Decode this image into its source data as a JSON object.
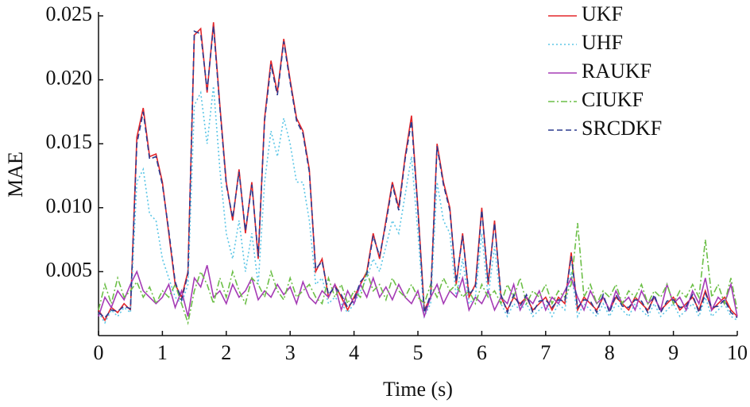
{
  "chart_data": {
    "type": "line",
    "xlabel": "Time (s)",
    "ylabel": "MAE",
    "xlim": [
      0,
      10
    ],
    "xticks": [
      0,
      1,
      2,
      3,
      4,
      5,
      6,
      7,
      8,
      9,
      10
    ],
    "ylim": [
      0,
      0.025
    ],
    "yticks": [
      0.005,
      {
        "value": 0.01,
        "label": "0.010"
      },
      0.015,
      {
        "value": 0.02,
        "label": "0.020"
      },
      0.025
    ],
    "legend": "upper right",
    "x": [
      0,
      0.1,
      0.2,
      0.3,
      0.4,
      0.5,
      0.6,
      0.7,
      0.8,
      0.9,
      1,
      1.1,
      1.2,
      1.3,
      1.4,
      1.5,
      1.6,
      1.7,
      1.8,
      1.9,
      2,
      2.1,
      2.2,
      2.3,
      2.4,
      2.5,
      2.6,
      2.7,
      2.8,
      2.9,
      3,
      3.1,
      3.2,
      3.3,
      3.4,
      3.5,
      3.6,
      3.7,
      3.8,
      3.9,
      4,
      4.1,
      4.2,
      4.3,
      4.4,
      4.5,
      4.6,
      4.7,
      4.8,
      4.9,
      5,
      5.1,
      5.2,
      5.3,
      5.4,
      5.5,
      5.6,
      5.7,
      5.8,
      5.9,
      6,
      6.1,
      6.2,
      6.3,
      6.4,
      6.5,
      6.6,
      6.7,
      6.8,
      6.9,
      7,
      7.1,
      7.2,
      7.3,
      7.4,
      7.5,
      7.6,
      7.7,
      7.8,
      7.9,
      8,
      8.1,
      8.2,
      8.3,
      8.4,
      8.5,
      8.6,
      8.7,
      8.8,
      8.9,
      9,
      9.1,
      9.2,
      9.3,
      9.4,
      9.5,
      9.6,
      9.7,
      9.8,
      9.9,
      10
    ],
    "series": [
      {
        "name": "UKF",
        "color": "#e3262a",
        "dash": "none",
        "values": [
          0.002,
          0.0012,
          0.0022,
          0.0018,
          0.0025,
          0.002,
          0.0155,
          0.0178,
          0.014,
          0.0142,
          0.012,
          0.008,
          0.004,
          0.003,
          0.005,
          0.0235,
          0.024,
          0.019,
          0.0245,
          0.018,
          0.012,
          0.009,
          0.013,
          0.008,
          0.012,
          0.006,
          0.017,
          0.0215,
          0.019,
          0.0232,
          0.02,
          0.017,
          0.016,
          0.013,
          0.005,
          0.006,
          0.003,
          0.004,
          0.003,
          0.002,
          0.003,
          0.004,
          0.005,
          0.008,
          0.006,
          0.009,
          0.012,
          0.01,
          0.014,
          0.0172,
          0.01,
          0.002,
          0.003,
          0.015,
          0.012,
          0.01,
          0.004,
          0.008,
          0.003,
          0.004,
          0.01,
          0.004,
          0.009,
          0.003,
          0.002,
          0.003,
          0.0025,
          0.003,
          0.002,
          0.0025,
          0.003,
          0.002,
          0.003,
          0.0025,
          0.0065,
          0.002,
          0.003,
          0.0025,
          0.002,
          0.003,
          0.002,
          0.003,
          0.0025,
          0.002,
          0.003,
          0.0025,
          0.002,
          0.003,
          0.002,
          0.0025,
          0.003,
          0.002,
          0.0025,
          0.003,
          0.002,
          0.0035,
          0.002,
          0.0025,
          0.003,
          0.002,
          0.0015
        ]
      },
      {
        "name": "UHF",
        "color": "#5cc6e6",
        "dash": "2,3",
        "values": [
          0.0018,
          0.001,
          0.002,
          0.0015,
          0.0022,
          0.0018,
          0.012,
          0.013,
          0.0095,
          0.009,
          0.006,
          0.0045,
          0.003,
          0.0025,
          0.004,
          0.018,
          0.019,
          0.015,
          0.0195,
          0.013,
          0.008,
          0.006,
          0.009,
          0.005,
          0.008,
          0.004,
          0.012,
          0.016,
          0.014,
          0.017,
          0.015,
          0.012,
          0.012,
          0.009,
          0.004,
          0.0045,
          0.0025,
          0.003,
          0.0025,
          0.0018,
          0.0025,
          0.0035,
          0.0045,
          0.006,
          0.005,
          0.007,
          0.009,
          0.008,
          0.011,
          0.014,
          0.008,
          0.0015,
          0.0025,
          0.012,
          0.009,
          0.008,
          0.003,
          0.006,
          0.0025,
          0.003,
          0.008,
          0.003,
          0.007,
          0.0025,
          0.0015,
          0.0025,
          0.002,
          0.0025,
          0.0015,
          0.002,
          0.0025,
          0.0015,
          0.0025,
          0.002,
          0.005,
          0.0015,
          0.0025,
          0.002,
          0.0015,
          0.0025,
          0.0015,
          0.0025,
          0.002,
          0.0015,
          0.0025,
          0.002,
          0.0015,
          0.0025,
          0.0015,
          0.002,
          0.0025,
          0.0015,
          0.002,
          0.0025,
          0.0015,
          0.003,
          0.0015,
          0.002,
          0.0025,
          0.0015,
          0.0012
        ]
      },
      {
        "name": "RAUKF",
        "color": "#a53bb5",
        "dash": "none",
        "values": [
          0.0015,
          0.003,
          0.0022,
          0.0035,
          0.0028,
          0.004,
          0.005,
          0.0035,
          0.003,
          0.0025,
          0.003,
          0.004,
          0.0022,
          0.0035,
          0.0015,
          0.0045,
          0.0038,
          0.0055,
          0.003,
          0.0035,
          0.0025,
          0.004,
          0.003,
          0.0035,
          0.0045,
          0.0028,
          0.0035,
          0.003,
          0.004,
          0.0032,
          0.0038,
          0.0025,
          0.0042,
          0.003,
          0.0025,
          0.0035,
          0.003,
          0.004,
          0.002,
          0.0035,
          0.0025,
          0.004,
          0.003,
          0.0045,
          0.003,
          0.0038,
          0.0028,
          0.004,
          0.003,
          0.0025,
          0.0035,
          0.0015,
          0.003,
          0.004,
          0.0025,
          0.0035,
          0.003,
          0.0045,
          0.002,
          0.003,
          0.0025,
          0.0035,
          0.002,
          0.003,
          0.0025,
          0.004,
          0.002,
          0.003,
          0.0025,
          0.0035,
          0.002,
          0.003,
          0.0025,
          0.0035,
          0.0045,
          0.003,
          0.002,
          0.0035,
          0.0025,
          0.003,
          0.002,
          0.0035,
          0.0025,
          0.003,
          0.002,
          0.0035,
          0.0025,
          0.003,
          0.002,
          0.004,
          0.0025,
          0.003,
          0.002,
          0.0035,
          0.0025,
          0.0045,
          0.002,
          0.003,
          0.0025,
          0.004,
          0.0015
        ]
      },
      {
        "name": "CIUKF",
        "color": "#6cbf47",
        "dash": "8,3,2,3",
        "values": [
          0.002,
          0.004,
          0.0025,
          0.0045,
          0.003,
          0.0035,
          0.0042,
          0.003,
          0.0038,
          0.0025,
          0.0035,
          0.003,
          0.004,
          0.0025,
          0.001,
          0.0035,
          0.005,
          0.004,
          0.0025,
          0.0045,
          0.003,
          0.005,
          0.0035,
          0.0025,
          0.0045,
          0.004,
          0.003,
          0.005,
          0.0035,
          0.0028,
          0.0045,
          0.003,
          0.0035,
          0.004,
          0.003,
          0.0025,
          0.0045,
          0.003,
          0.004,
          0.0025,
          0.0035,
          0.003,
          0.005,
          0.0035,
          0.004,
          0.0028,
          0.0045,
          0.0035,
          0.003,
          0.004,
          0.003,
          0.0025,
          0.004,
          0.003,
          0.0045,
          0.0035,
          0.004,
          0.003,
          0.0035,
          0.0025,
          0.004,
          0.003,
          0.0035,
          0.0025,
          0.004,
          0.003,
          0.0045,
          0.0025,
          0.0035,
          0.003,
          0.004,
          0.0025,
          0.0035,
          0.003,
          0.004,
          0.0088,
          0.003,
          0.004,
          0.0025,
          0.0035,
          0.003,
          0.004,
          0.0025,
          0.0035,
          0.003,
          0.004,
          0.0025,
          0.0035,
          0.003,
          0.004,
          0.0025,
          0.0035,
          0.003,
          0.004,
          0.003,
          0.0075,
          0.003,
          0.004,
          0.0025,
          0.0045,
          0.002
        ]
      },
      {
        "name": "SRCDKF",
        "color": "#2b3a8f",
        "dash": "7,4",
        "values": [
          0.0018,
          0.0014,
          0.002,
          0.0019,
          0.0023,
          0.0021,
          0.015,
          0.0175,
          0.0138,
          0.014,
          0.0118,
          0.0082,
          0.0042,
          0.0028,
          0.0048,
          0.0238,
          0.0236,
          0.0192,
          0.0242,
          0.0178,
          0.0118,
          0.0092,
          0.0128,
          0.0082,
          0.0118,
          0.0062,
          0.0168,
          0.0212,
          0.0188,
          0.023,
          0.0198,
          0.0168,
          0.0158,
          0.0128,
          0.0052,
          0.0058,
          0.0032,
          0.0038,
          0.0032,
          0.0022,
          0.0028,
          0.0042,
          0.0048,
          0.0078,
          0.0062,
          0.0088,
          0.0118,
          0.0098,
          0.0138,
          0.0168,
          0.0098,
          0.0018,
          0.0032,
          0.0148,
          0.0118,
          0.0098,
          0.0042,
          0.0078,
          0.0032,
          0.0038,
          0.0098,
          0.0042,
          0.0088,
          0.0032,
          0.0018,
          0.0032,
          0.0023,
          0.0032,
          0.0018,
          0.0027,
          0.0028,
          0.0022,
          0.0028,
          0.0027,
          0.0062,
          0.0022,
          0.0028,
          0.0027,
          0.0018,
          0.0032,
          0.0018,
          0.0032,
          0.0023,
          0.0022,
          0.0028,
          0.0027,
          0.0018,
          0.0032,
          0.0018,
          0.0027,
          0.0028,
          0.0022,
          0.0023,
          0.0032,
          0.0018,
          0.0033,
          0.0022,
          0.0023,
          0.0028,
          0.0018,
          0.0014
        ]
      }
    ]
  }
}
